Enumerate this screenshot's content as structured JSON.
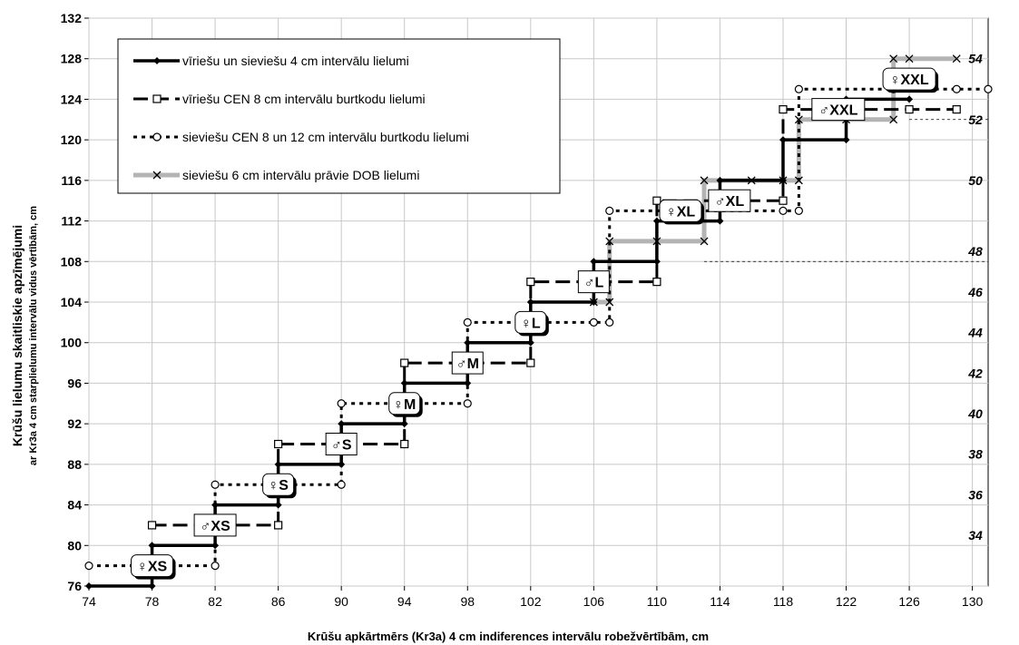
{
  "chart_data": {
    "type": "line",
    "xlabel": "Krūšu apkārtmērs (Kr3a) 4 cm indiferences intervālu robežvērtībām, cm",
    "ylabel": "Krūšu lielumu skaitliskie apzīmējumi",
    "ylabel2": "ar Kr3a 4 cm starplielumu intervālu vidus vērtībām, cm",
    "xlim": [
      74,
      131
    ],
    "ylim": [
      76,
      132
    ],
    "xticks": [
      74,
      78,
      82,
      86,
      90,
      94,
      98,
      102,
      106,
      110,
      114,
      118,
      122,
      126,
      130
    ],
    "yticks": [
      76,
      80,
      84,
      88,
      92,
      96,
      100,
      104,
      108,
      112,
      116,
      120,
      124,
      128,
      132
    ],
    "grid": true,
    "legend_position": "top-left",
    "series": [
      {
        "name": "vīriešu un sieviešu 4 cm intervālu lielumi",
        "style": "solid-black-diamond",
        "color": "#000000",
        "points": [
          [
            74,
            76
          ],
          [
            78,
            76
          ],
          [
            78,
            80
          ],
          [
            82,
            80
          ],
          [
            82,
            84
          ],
          [
            86,
            84
          ],
          [
            86,
            88
          ],
          [
            90,
            88
          ],
          [
            90,
            92
          ],
          [
            94,
            92
          ],
          [
            94,
            96
          ],
          [
            98,
            96
          ],
          [
            98,
            100
          ],
          [
            102,
            100
          ],
          [
            102,
            104
          ],
          [
            106,
            104
          ],
          [
            106,
            108
          ],
          [
            110,
            108
          ],
          [
            110,
            112
          ],
          [
            114,
            112
          ],
          [
            114,
            116
          ],
          [
            118,
            116
          ],
          [
            118,
            120
          ],
          [
            122,
            120
          ],
          [
            122,
            124
          ],
          [
            126,
            124
          ]
        ]
      },
      {
        "name": "vīriešu CEN 8 cm intervālu burtkodu lielumi",
        "style": "dash-black-square",
        "color": "#000000",
        "points": [
          [
            78,
            82
          ],
          [
            86,
            82
          ],
          [
            86,
            90
          ],
          [
            94,
            90
          ],
          [
            94,
            98
          ],
          [
            102,
            98
          ],
          [
            102,
            106
          ],
          [
            110,
            106
          ],
          [
            110,
            114
          ],
          [
            118,
            114
          ],
          [
            118,
            123
          ],
          [
            126,
            123
          ],
          [
            129,
            123
          ]
        ]
      },
      {
        "name": "sieviešu CEN 8 un 12 cm intervālu burtkodu lielumi",
        "style": "dot-black-circle",
        "color": "#000000",
        "points": [
          [
            74,
            78
          ],
          [
            82,
            78
          ],
          [
            82,
            86
          ],
          [
            90,
            86
          ],
          [
            90,
            94
          ],
          [
            98,
            94
          ],
          [
            98,
            102
          ],
          [
            106,
            102
          ],
          [
            107,
            102
          ],
          [
            107,
            113
          ],
          [
            118,
            113
          ],
          [
            119,
            113
          ],
          [
            119,
            125
          ],
          [
            125,
            125
          ],
          [
            129,
            125
          ],
          [
            131,
            125
          ]
        ]
      },
      {
        "name": "sieviešu 6 cm intervālu prāvie DOB lielumi",
        "style": "solid-gray-x",
        "color": "#b4b4b4",
        "points": [
          [
            106,
            104
          ],
          [
            107,
            104
          ],
          [
            107,
            110
          ],
          [
            110,
            110
          ],
          [
            113,
            110
          ],
          [
            113,
            116
          ],
          [
            116,
            116
          ],
          [
            118,
            116
          ],
          [
            119,
            116
          ],
          [
            119,
            122
          ],
          [
            122,
            122
          ],
          [
            125,
            122
          ],
          [
            125,
            128
          ],
          [
            126,
            128
          ],
          [
            129,
            128
          ]
        ]
      }
    ],
    "size_labels": [
      {
        "text": "♀XS",
        "x": 78,
        "y": 78,
        "sex": "female"
      },
      {
        "text": "♂XS",
        "x": 82,
        "y": 82,
        "sex": "male"
      },
      {
        "text": "♀S",
        "x": 86,
        "y": 86,
        "sex": "female"
      },
      {
        "text": "♂S",
        "x": 90,
        "y": 90,
        "sex": "male"
      },
      {
        "text": "♀M",
        "x": 94,
        "y": 94,
        "sex": "female"
      },
      {
        "text": "♂M",
        "x": 98,
        "y": 98,
        "sex": "male"
      },
      {
        "text": "♀L",
        "x": 102,
        "y": 102,
        "sex": "female"
      },
      {
        "text": "♂L",
        "x": 106,
        "y": 106,
        "sex": "male"
      },
      {
        "text": "♀XL",
        "x": 111.5,
        "y": 113,
        "sex": "female"
      },
      {
        "text": "♂XL",
        "x": 114.6,
        "y": 114,
        "sex": "male"
      },
      {
        "text": "♀XXL",
        "x": 126,
        "y": 126,
        "sex": "female"
      },
      {
        "text": "♂XXL",
        "x": 121.5,
        "y": 123,
        "sex": "male"
      }
    ],
    "right_labels": [
      {
        "text": "34",
        "y": 81
      },
      {
        "text": "36",
        "y": 85
      },
      {
        "text": "38",
        "y": 89
      },
      {
        "text": "40",
        "y": 93
      },
      {
        "text": "42",
        "y": 97
      },
      {
        "text": "44",
        "y": 101
      },
      {
        "text": "46",
        "y": 105
      },
      {
        "text": "48",
        "y": 109
      },
      {
        "text": "50",
        "y": 116
      },
      {
        "text": "52",
        "y": 122
      },
      {
        "text": "54",
        "y": 128
      }
    ],
    "guide_lines": [
      {
        "x1": 113,
        "x2": 131,
        "y": 108
      },
      {
        "x1": 126,
        "x2": 131,
        "y": 122
      }
    ]
  }
}
